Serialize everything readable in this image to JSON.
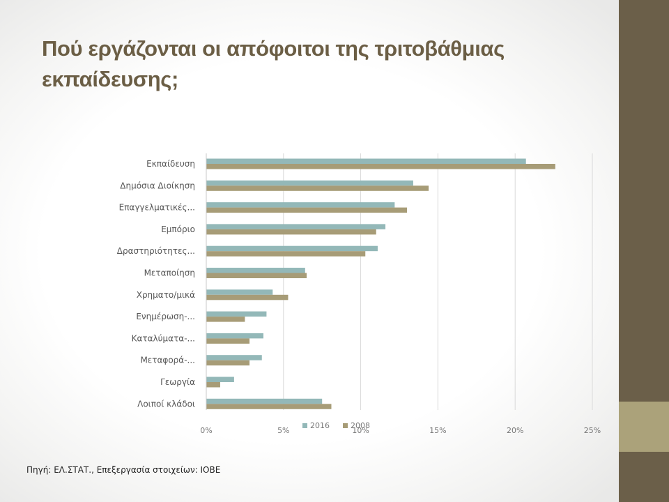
{
  "slide": {
    "title_line1": "Πού εργάζονται οι απόφοιτοι της τριτοβάθμιας",
    "title_line2": "εκπαίδευσης;",
    "source": "Πηγή: ΕΛ.ΣΤΑΤ., Επεξεργασία στοιχείων: ΙΟΒΕ"
  },
  "colors": {
    "title": "#6b5e45",
    "accent_dark": "#6b5f49",
    "accent_light": "#aba27a",
    "series_2016": "#93b8b8",
    "series_2008": "#a79c77"
  },
  "chart_data": {
    "type": "bar",
    "orientation": "horizontal",
    "categories": [
      "Εκπαίδευση",
      "Δημόσια Διοίκηση",
      "Επαγγελματικές...",
      "Εμπόριο",
      "Δραστηριότητες...",
      "Μεταποίηση",
      "Χρηματο/μικά",
      "Ενημέρωση-...",
      "Καταλύματα-...",
      "Μεταφορά-...",
      "Γεωργία",
      "Λοιποί κλάδοι"
    ],
    "series": [
      {
        "name": "2016",
        "color": "#93b8b8",
        "values": [
          20.7,
          13.4,
          12.2,
          11.6,
          11.1,
          6.4,
          4.3,
          3.9,
          3.7,
          3.6,
          1.8,
          7.5
        ]
      },
      {
        "name": "2008",
        "color": "#a79c77",
        "values": [
          22.6,
          14.4,
          13.0,
          11.0,
          10.3,
          6.5,
          5.3,
          2.5,
          2.8,
          2.8,
          0.9,
          8.1
        ]
      }
    ],
    "xlim": [
      0,
      25
    ],
    "x_ticks": [
      "0%",
      "5%",
      "10%",
      "15%",
      "20%",
      "25%"
    ],
    "tick_values": [
      0,
      5,
      10,
      15,
      20,
      25
    ],
    "grid": true,
    "legend_position": "bottom"
  }
}
